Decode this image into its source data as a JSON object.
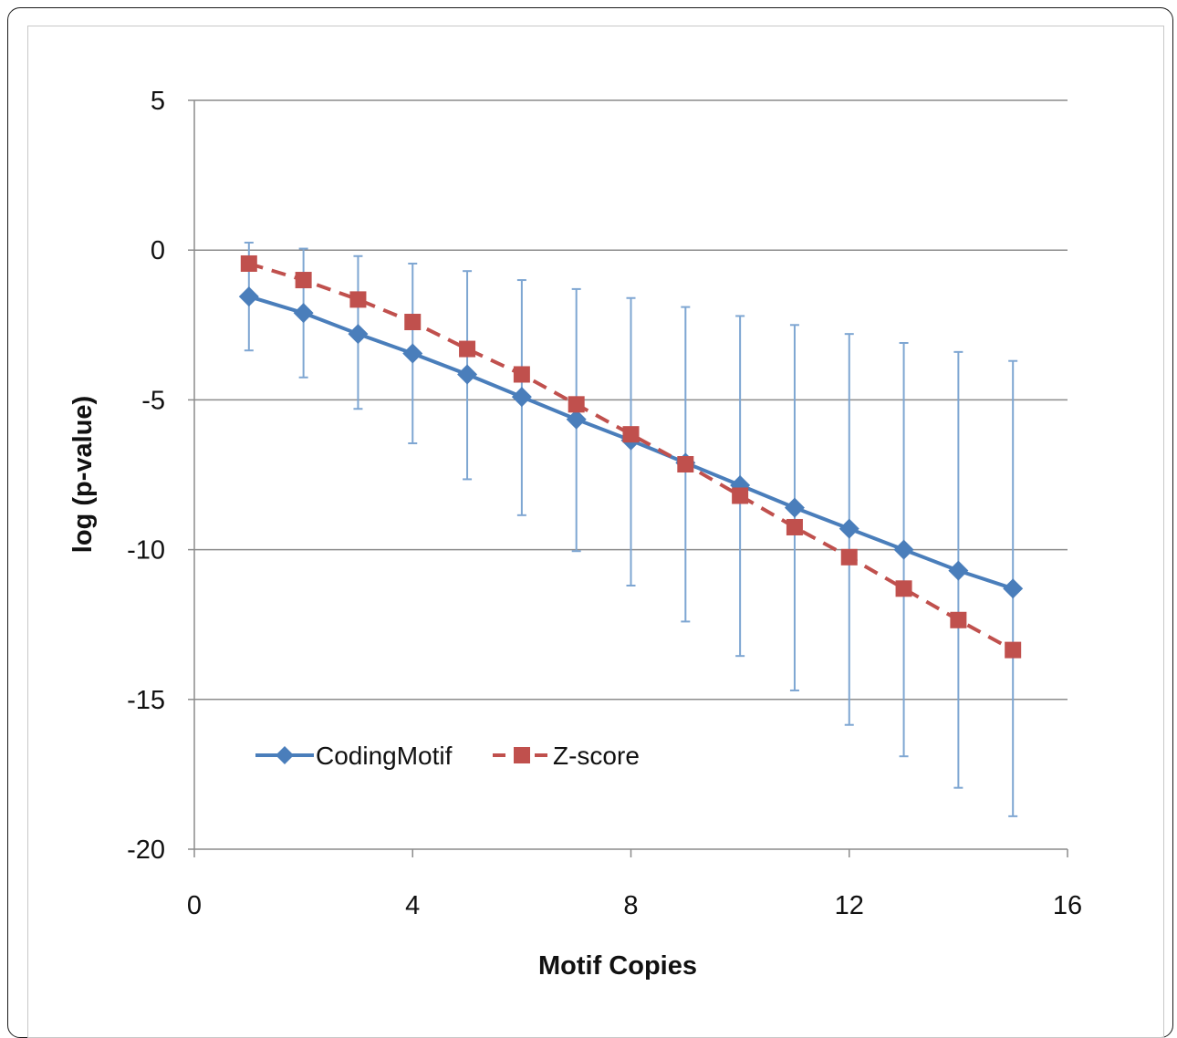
{
  "chart_data": {
    "type": "line",
    "title": "",
    "xlabel": "Motif Copies",
    "ylabel": "log (p-value)",
    "xlim": [
      0,
      16
    ],
    "ylim": [
      -20,
      5
    ],
    "xticks": [
      0,
      4,
      8,
      12,
      16
    ],
    "yticks": [
      5,
      0,
      -5,
      -10,
      -15,
      -20
    ],
    "grid": "horizontal",
    "legend_position": "bottom-left",
    "x": [
      1,
      2,
      3,
      4,
      5,
      6,
      7,
      8,
      9,
      10,
      11,
      12,
      13,
      14,
      15
    ],
    "series": [
      {
        "name": "CodingMotif",
        "color": "#4a7ebb",
        "line_style": "solid",
        "marker": "diamond",
        "values": [
          -1.55,
          -2.1,
          -2.8,
          -3.45,
          -4.15,
          -4.9,
          -5.65,
          -6.35,
          -7.1,
          -7.85,
          -8.6,
          -9.3,
          -10.0,
          -10.7,
          -11.3
        ],
        "error_low": [
          -3.35,
          -4.25,
          -5.3,
          -6.45,
          -7.65,
          -8.85,
          -10.05,
          -11.2,
          -12.4,
          -13.55,
          -14.7,
          -15.85,
          -16.9,
          -17.95,
          -18.9
        ],
        "error_high": [
          0.25,
          0.05,
          -0.2,
          -0.45,
          -0.7,
          -1.0,
          -1.3,
          -1.6,
          -1.9,
          -2.2,
          -2.5,
          -2.8,
          -3.1,
          -3.4,
          -3.7
        ]
      },
      {
        "name": "Z-score",
        "color": "#c0504d",
        "line_style": "dashed",
        "marker": "square",
        "values": [
          -0.45,
          -1.0,
          -1.65,
          -2.4,
          -3.3,
          -4.15,
          -5.15,
          -6.15,
          -7.15,
          -8.2,
          -9.25,
          -10.25,
          -11.3,
          -12.35,
          -13.35
        ]
      }
    ]
  }
}
